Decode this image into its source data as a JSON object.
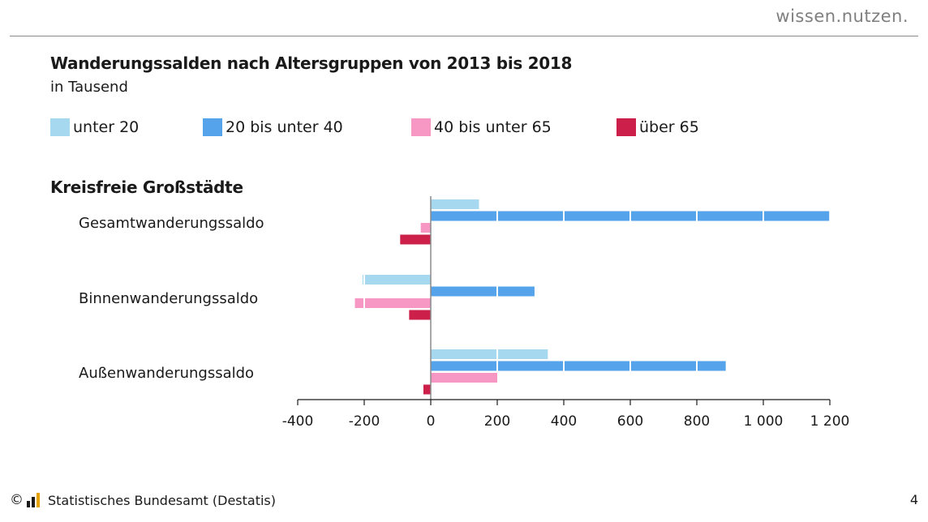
{
  "header": {
    "brand": "wissen.nutzen."
  },
  "footer": {
    "copyright_symbol": "©",
    "source": "Statistisches Bundesamt (Destatis)",
    "page_number": "4"
  },
  "chart_data": {
    "type": "bar",
    "orientation": "horizontal",
    "title": "Wanderungssalden nach Altersgruppen von 2013 bis 2018",
    "subtitle": "in Tausend",
    "group_title": "Kreisfreie Großstädte",
    "categories": [
      "Gesamtwanderungssaldo",
      "Binnenwanderungssaldo",
      "Außenwanderungssaldo"
    ],
    "series": [
      {
        "name": "unter 20",
        "color": "#a6d9ef",
        "values": [
          145,
          -205,
          352
        ]
      },
      {
        "name": "20 bis unter 40",
        "color": "#55a3ea",
        "values": [
          1198,
          312,
          887
        ]
      },
      {
        "name": "40 bis unter 65",
        "color": "#f797c4",
        "values": [
          -30,
          -228,
          200
        ]
      },
      {
        "name": "über 65",
        "color": "#cc1f4a",
        "values": [
          -92,
          -65,
          -22
        ]
      }
    ],
    "xlim": [
      -400,
      1200
    ],
    "xticks": [
      -400,
      -200,
      0,
      200,
      400,
      600,
      800,
      1000,
      1200
    ],
    "xtick_labels": [
      "-400",
      "-200",
      "0",
      "200",
      "400",
      "600",
      "800",
      "1 000",
      "1 200"
    ],
    "grid": false,
    "legend_position": "top"
  }
}
